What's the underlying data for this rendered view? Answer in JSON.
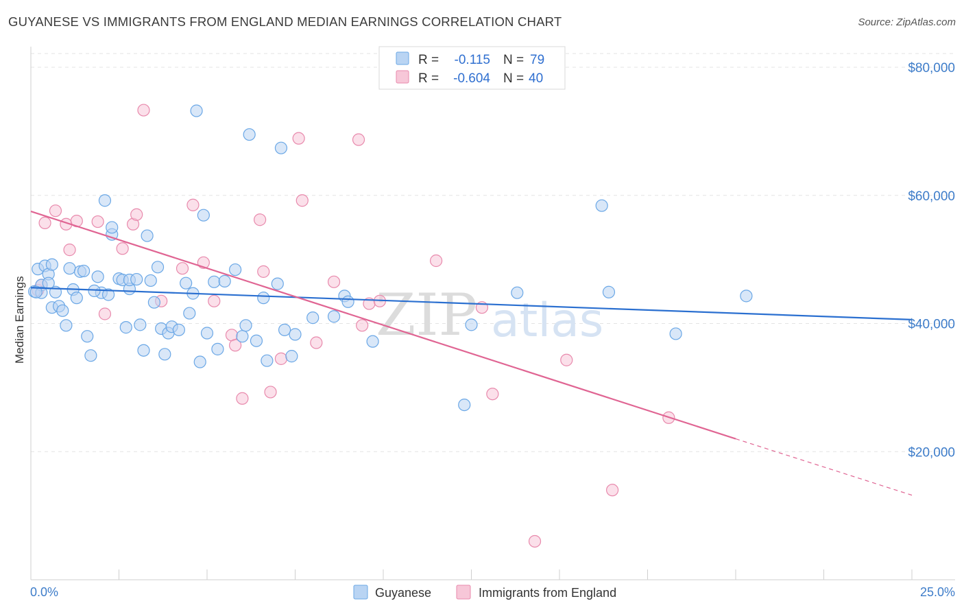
{
  "title": "GUYANESE VS IMMIGRANTS FROM ENGLAND MEDIAN EARNINGS CORRELATION CHART",
  "source": "Source: ZipAtlas.com",
  "watermark": {
    "zip": "ZIP",
    "atlas": "atlas"
  },
  "colors": {
    "blue": "#6aa7e6",
    "blue_fill": "#b9d4f3",
    "blue_line": "#2a6fd0",
    "pink": "#e889ac",
    "pink_fill": "#f7c7d8",
    "pink_line": "#e06593",
    "axis_text": "#3d7cc9"
  },
  "legend": {
    "rows": [
      {
        "r_label": "R =",
        "r_value": "-0.115",
        "n_label": "N =",
        "n_value": "79"
      },
      {
        "r_label": "R =",
        "r_value": "-0.604",
        "n_label": "N =",
        "n_value": "40"
      }
    ]
  },
  "bottom_legend": [
    "Guyanese",
    "Immigrants from England"
  ],
  "chart_data": {
    "type": "scatter",
    "title": "GUYANESE VS IMMIGRANTS FROM ENGLAND MEDIAN EARNINGS CORRELATION CHART",
    "xlabel": "",
    "ylabel": "Median Earnings",
    "xlim": [
      0,
      25
    ],
    "ylim": [
      0,
      83000
    ],
    "x_tick_labels": [
      "0.0%",
      "25.0%"
    ],
    "y_ticks": [
      20000,
      40000,
      60000,
      80000
    ],
    "y_tick_labels": [
      "$20,000",
      "$40,000",
      "$60,000",
      "$80,000"
    ],
    "grid": true,
    "series": [
      {
        "name": "Guyanese",
        "r": -0.115,
        "n": 79,
        "trend": {
          "x0": 0.0,
          "y0": 45600,
          "x1": 25.0,
          "y1": 40600
        },
        "points": [
          [
            0.1,
            45000
          ],
          [
            0.2,
            48500
          ],
          [
            0.3,
            46000
          ],
          [
            0.3,
            44800
          ],
          [
            0.4,
            49000
          ],
          [
            0.5,
            47700
          ],
          [
            0.6,
            49200
          ],
          [
            0.6,
            42500
          ],
          [
            0.7,
            44900
          ],
          [
            0.8,
            42700
          ],
          [
            0.9,
            42000
          ],
          [
            1.0,
            39700
          ],
          [
            1.1,
            48600
          ],
          [
            1.2,
            45300
          ],
          [
            1.3,
            44000
          ],
          [
            1.4,
            48100
          ],
          [
            1.5,
            48200
          ],
          [
            1.6,
            38000
          ],
          [
            1.7,
            35000
          ],
          [
            1.9,
            47300
          ],
          [
            2.0,
            44800
          ],
          [
            2.1,
            59200
          ],
          [
            2.2,
            44500
          ],
          [
            2.3,
            53900
          ],
          [
            2.3,
            55000
          ],
          [
            2.5,
            47000
          ],
          [
            2.6,
            46800
          ],
          [
            2.7,
            39400
          ],
          [
            2.8,
            45400
          ],
          [
            2.8,
            46800
          ],
          [
            3.0,
            46900
          ],
          [
            3.1,
            39800
          ],
          [
            3.2,
            35800
          ],
          [
            3.3,
            53700
          ],
          [
            3.4,
            46700
          ],
          [
            3.5,
            43300
          ],
          [
            3.6,
            48800
          ],
          [
            3.7,
            39200
          ],
          [
            3.8,
            35200
          ],
          [
            3.9,
            38500
          ],
          [
            4.0,
            39500
          ],
          [
            4.2,
            39000
          ],
          [
            4.4,
            46300
          ],
          [
            4.5,
            41600
          ],
          [
            4.6,
            44700
          ],
          [
            4.7,
            73200
          ],
          [
            4.8,
            34000
          ],
          [
            4.9,
            56900
          ],
          [
            5.0,
            38500
          ],
          [
            5.2,
            46500
          ],
          [
            5.3,
            36000
          ],
          [
            5.5,
            46600
          ],
          [
            5.8,
            48400
          ],
          [
            6.0,
            38000
          ],
          [
            6.1,
            39700
          ],
          [
            6.2,
            69500
          ],
          [
            6.4,
            37300
          ],
          [
            6.6,
            44000
          ],
          [
            6.7,
            34200
          ],
          [
            7.0,
            46200
          ],
          [
            7.1,
            67400
          ],
          [
            7.2,
            39000
          ],
          [
            7.4,
            34900
          ],
          [
            7.5,
            38300
          ],
          [
            8.0,
            40900
          ],
          [
            8.6,
            41100
          ],
          [
            8.9,
            44300
          ],
          [
            9.0,
            43400
          ],
          [
            9.7,
            37200
          ],
          [
            12.3,
            27300
          ],
          [
            12.5,
            39800
          ],
          [
            13.8,
            44800
          ],
          [
            16.2,
            58400
          ],
          [
            16.4,
            44900
          ],
          [
            18.3,
            38400
          ],
          [
            20.3,
            44300
          ],
          [
            0.15,
            44900
          ],
          [
            1.8,
            45100
          ],
          [
            0.5,
            46300
          ]
        ]
      },
      {
        "name": "Immigrants from England",
        "r": -0.604,
        "n": 40,
        "trend": {
          "x0": 0.0,
          "y0": 57500,
          "x1": 20.0,
          "y1": 22000,
          "dash_x1": 25.0,
          "dash_y1": 13200
        },
        "points": [
          [
            0.2,
            45200
          ],
          [
            0.3,
            46000
          ],
          [
            0.4,
            55700
          ],
          [
            0.7,
            57600
          ],
          [
            1.0,
            55500
          ],
          [
            1.1,
            51500
          ],
          [
            1.3,
            56000
          ],
          [
            1.9,
            55900
          ],
          [
            2.1,
            41500
          ],
          [
            2.6,
            51700
          ],
          [
            2.9,
            55500
          ],
          [
            3.0,
            57000
          ],
          [
            3.2,
            73300
          ],
          [
            3.7,
            43500
          ],
          [
            4.3,
            48600
          ],
          [
            4.6,
            58500
          ],
          [
            4.9,
            49500
          ],
          [
            5.2,
            43500
          ],
          [
            5.7,
            38200
          ],
          [
            5.8,
            36600
          ],
          [
            6.0,
            28300
          ],
          [
            6.5,
            56200
          ],
          [
            6.6,
            48100
          ],
          [
            6.8,
            29300
          ],
          [
            7.1,
            34500
          ],
          [
            7.6,
            68900
          ],
          [
            7.7,
            59200
          ],
          [
            8.1,
            37000
          ],
          [
            8.6,
            46500
          ],
          [
            9.4,
            39700
          ],
          [
            9.6,
            43100
          ],
          [
            9.9,
            43500
          ],
          [
            11.5,
            49800
          ],
          [
            12.8,
            42500
          ],
          [
            13.1,
            29000
          ],
          [
            14.3,
            6000
          ],
          [
            15.2,
            34300
          ],
          [
            16.5,
            14000
          ],
          [
            18.1,
            25300
          ],
          [
            9.3,
            68700
          ]
        ]
      }
    ]
  }
}
